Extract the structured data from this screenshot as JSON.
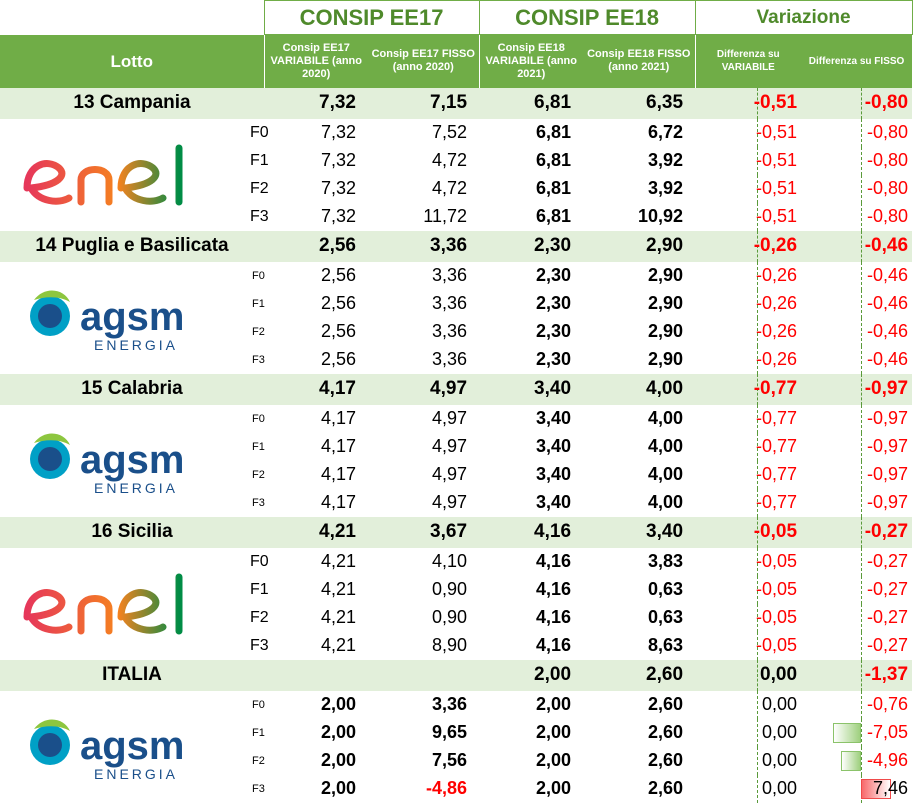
{
  "header": {
    "ee17_title": "CONSIP EE17",
    "ee18_title": "CONSIP EE18",
    "variation_title": "Variazione",
    "col_lotto": "Lotto",
    "col_ee17_var": "Consip EE17 VARIABILE (anno 2020)",
    "col_ee17_fix": "Consip EE17 FISSO (anno 2020)",
    "col_ee18_var": "Consip EE18 VARIABILE (anno 2021)",
    "col_ee18_fix": "Consip EE18 FISSO (anno 2021)",
    "col_diff_var": "Differenza su VARIABILE",
    "col_diff_fix": "Differenza su FISSO"
  },
  "logos": {
    "enel": {
      "text": "enel",
      "colors": [
        "#e6375a",
        "#f5821f",
        "#008c45"
      ]
    },
    "agsm": {
      "text": "agsm",
      "subtext": "ENERGIA",
      "colors": [
        "#1a4f8a",
        "#8dc63f",
        "#00a0c6"
      ]
    }
  },
  "colors": {
    "accent": "#70ad47",
    "title": "#4f8a2b",
    "band": "#e2efda",
    "negative": "#ff0000"
  },
  "lotti": [
    {
      "name": "13 Campania",
      "logo": "enel",
      "small_fascia": false,
      "summary": {
        "ee17_var": "7,32",
        "ee17_fix": "7,15",
        "ee18_var": "6,81",
        "ee18_fix": "6,35",
        "diff_var": "-0,51",
        "diff_fix": "-0,80"
      },
      "rows": [
        {
          "fascia": "F0",
          "ee17_var": "7,32",
          "ee17_fix": "7,52",
          "ee18_var": "6,81",
          "ee18_fix": "6,72",
          "diff_var": "-0,51",
          "diff_fix": "-0,80"
        },
        {
          "fascia": "F1",
          "ee17_var": "7,32",
          "ee17_fix": "4,72",
          "ee18_var": "6,81",
          "ee18_fix": "3,92",
          "diff_var": "-0,51",
          "diff_fix": "-0,80"
        },
        {
          "fascia": "F2",
          "ee17_var": "7,32",
          "ee17_fix": "4,72",
          "ee18_var": "6,81",
          "ee18_fix": "3,92",
          "diff_var": "-0,51",
          "diff_fix": "-0,80"
        },
        {
          "fascia": "F3",
          "ee17_var": "7,32",
          "ee17_fix": "11,72",
          "ee18_var": "6,81",
          "ee18_fix": "10,92",
          "diff_var": "-0,51",
          "diff_fix": "-0,80"
        }
      ]
    },
    {
      "name": "14 Puglia e Basilicata",
      "logo": "agsm",
      "small_fascia": true,
      "summary": {
        "ee17_var": "2,56",
        "ee17_fix": "3,36",
        "ee18_var": "2,30",
        "ee18_fix": "2,90",
        "diff_var": "-0,26",
        "diff_fix": "-0,46"
      },
      "rows": [
        {
          "fascia": "F0",
          "ee17_var": "2,56",
          "ee17_fix": "3,36",
          "ee18_var": "2,30",
          "ee18_fix": "2,90",
          "diff_var": "-0,26",
          "diff_fix": "-0,46"
        },
        {
          "fascia": "F1",
          "ee17_var": "2,56",
          "ee17_fix": "3,36",
          "ee18_var": "2,30",
          "ee18_fix": "2,90",
          "diff_var": "-0,26",
          "diff_fix": "-0,46"
        },
        {
          "fascia": "F2",
          "ee17_var": "2,56",
          "ee17_fix": "3,36",
          "ee18_var": "2,30",
          "ee18_fix": "2,90",
          "diff_var": "-0,26",
          "diff_fix": "-0,46"
        },
        {
          "fascia": "F3",
          "ee17_var": "2,56",
          "ee17_fix": "3,36",
          "ee18_var": "2,30",
          "ee18_fix": "2,90",
          "diff_var": "-0,26",
          "diff_fix": "-0,46"
        }
      ]
    },
    {
      "name": "15 Calabria",
      "logo": "agsm",
      "small_fascia": true,
      "summary": {
        "ee17_var": "4,17",
        "ee17_fix": "4,97",
        "ee18_var": "3,40",
        "ee18_fix": "4,00",
        "diff_var": "-0,77",
        "diff_fix": "-0,97"
      },
      "rows": [
        {
          "fascia": "F0",
          "ee17_var": "4,17",
          "ee17_fix": "4,97",
          "ee18_var": "3,40",
          "ee18_fix": "4,00",
          "diff_var": "-0,77",
          "diff_fix": "-0,97"
        },
        {
          "fascia": "F1",
          "ee17_var": "4,17",
          "ee17_fix": "4,97",
          "ee18_var": "3,40",
          "ee18_fix": "4,00",
          "diff_var": "-0,77",
          "diff_fix": "-0,97"
        },
        {
          "fascia": "F2",
          "ee17_var": "4,17",
          "ee17_fix": "4,97",
          "ee18_var": "3,40",
          "ee18_fix": "4,00",
          "diff_var": "-0,77",
          "diff_fix": "-0,97"
        },
        {
          "fascia": "F3",
          "ee17_var": "4,17",
          "ee17_fix": "4,97",
          "ee18_var": "3,40",
          "ee18_fix": "4,00",
          "diff_var": "-0,77",
          "diff_fix": "-0,97"
        }
      ]
    },
    {
      "name": "16 Sicilia",
      "logo": "enel",
      "small_fascia": false,
      "summary": {
        "ee17_var": "4,21",
        "ee17_fix": "3,67",
        "ee18_var": "4,16",
        "ee18_fix": "3,40",
        "diff_var": "-0,05",
        "diff_fix": "-0,27"
      },
      "rows": [
        {
          "fascia": "F0",
          "ee17_var": "4,21",
          "ee17_fix": "4,10",
          "ee18_var": "4,16",
          "ee18_fix": "3,83",
          "diff_var": "-0,05",
          "diff_fix": "-0,27"
        },
        {
          "fascia": "F1",
          "ee17_var": "4,21",
          "ee17_fix": "0,90",
          "ee18_var": "4,16",
          "ee18_fix": "0,63",
          "diff_var": "-0,05",
          "diff_fix": "-0,27"
        },
        {
          "fascia": "F2",
          "ee17_var": "4,21",
          "ee17_fix": "0,90",
          "ee18_var": "4,16",
          "ee18_fix": "0,63",
          "diff_var": "-0,05",
          "diff_fix": "-0,27"
        },
        {
          "fascia": "F3",
          "ee17_var": "4,21",
          "ee17_fix": "8,90",
          "ee18_var": "4,16",
          "ee18_fix": "8,63",
          "diff_var": "-0,05",
          "diff_fix": "-0,27"
        }
      ]
    },
    {
      "name": "ITALIA",
      "logo": "agsm",
      "small_fascia": true,
      "summary": {
        "ee17_var": "",
        "ee17_fix": "",
        "ee18_var": "2,00",
        "ee18_fix": "2,60",
        "diff_var": "0,00",
        "diff_fix": "-1,37"
      },
      "rows": [
        {
          "fascia": "F0",
          "ee17_var": "2,00",
          "ee17_fix": "3,36",
          "ee18_var": "2,00",
          "ee18_fix": "2,60",
          "diff_var": "0,00",
          "diff_fix": "-0,76"
        },
        {
          "fascia": "F1",
          "ee17_var": "2,00",
          "ee17_fix": "9,65",
          "ee18_var": "2,00",
          "ee18_fix": "2,60",
          "diff_var": "0,00",
          "diff_fix": "-7,05"
        },
        {
          "fascia": "F2",
          "ee17_var": "2,00",
          "ee17_fix": "7,56",
          "ee18_var": "2,00",
          "ee18_fix": "2,60",
          "diff_var": "0,00",
          "diff_fix": "-4,96"
        },
        {
          "fascia": "F3",
          "ee17_var": "2,00",
          "ee17_fix": "-4,86",
          "ee18_var": "2,00",
          "ee18_fix": "2,60",
          "diff_var": "0,00",
          "diff_fix": "7,46"
        }
      ]
    }
  ]
}
